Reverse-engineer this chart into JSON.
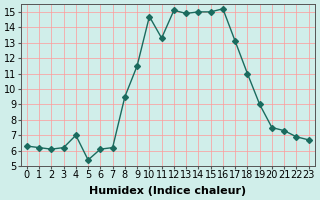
{
  "x": [
    0,
    1,
    2,
    3,
    4,
    5,
    6,
    7,
    8,
    9,
    10,
    11,
    12,
    13,
    14,
    15,
    16,
    17,
    18,
    19,
    20,
    21,
    22,
    23
  ],
  "y": [
    6.3,
    6.2,
    6.1,
    6.2,
    7.0,
    5.4,
    6.1,
    6.2,
    9.5,
    11.5,
    14.7,
    13.3,
    15.1,
    14.9,
    15.0,
    15.0,
    15.2,
    13.1,
    11.0,
    9.0,
    7.5,
    7.3,
    6.9,
    6.7
  ],
  "line_color": "#1a6b5e",
  "marker": "D",
  "marker_size": 3,
  "bg_color": "#d0eeea",
  "grid_color": "#ff9999",
  "xlabel": "Humidex (Indice chaleur)",
  "ylim": [
    5,
    15.5
  ],
  "xlim": [
    -0.5,
    23.5
  ],
  "yticks": [
    5,
    6,
    7,
    8,
    9,
    10,
    11,
    12,
    13,
    14,
    15
  ],
  "xticks": [
    0,
    1,
    2,
    3,
    4,
    5,
    6,
    7,
    8,
    9,
    10,
    11,
    12,
    13,
    14,
    15,
    16,
    17,
    18,
    19,
    20,
    21,
    22,
    23
  ],
  "xtick_labels": [
    "0",
    "1",
    "2",
    "3",
    "4",
    "5",
    "6",
    "7",
    "8",
    "9",
    "10",
    "11",
    "12",
    "13",
    "14",
    "15",
    "16",
    "17",
    "18",
    "19",
    "20",
    "21",
    "22",
    "23"
  ],
  "xlabel_fontsize": 8,
  "tick_fontsize": 7
}
